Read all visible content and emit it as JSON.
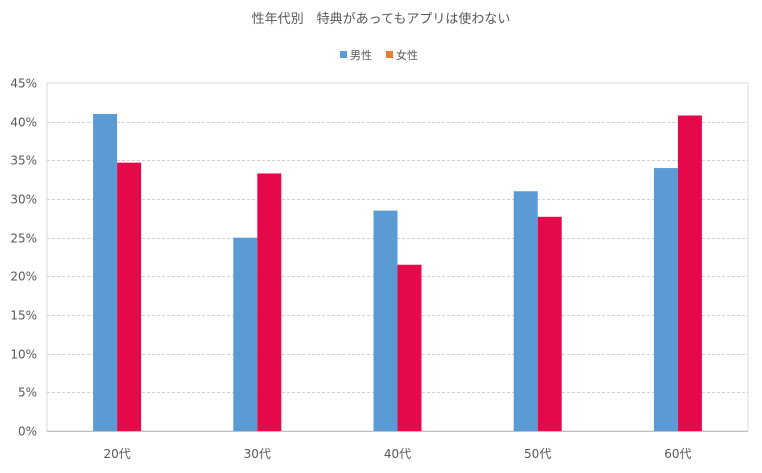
{
  "chart_data": {
    "type": "bar",
    "title": "性年代別　特典があってもアプリは使わない",
    "xlabel": "",
    "ylabel": "",
    "categories": [
      "20代",
      "30代",
      "40代",
      "50代",
      "60代"
    ],
    "series": [
      {
        "name": "男性",
        "color": "#5B9BD5",
        "values": [
          41.0,
          25.0,
          28.5,
          31.0,
          34.0
        ]
      },
      {
        "name": "女性",
        "color": "#E6094A",
        "values": [
          34.7,
          33.3,
          21.5,
          27.7,
          40.8
        ]
      }
    ],
    "legend_swatch_colors": [
      "#5B9BD5",
      "#ED7D31"
    ],
    "ylim": [
      0,
      45
    ],
    "yticks": [
      0,
      5,
      10,
      15,
      20,
      25,
      30,
      35,
      40,
      45
    ],
    "ytick_labels": [
      "0%",
      "5%",
      "10%",
      "15%",
      "20%",
      "25%",
      "30%",
      "35%",
      "40%",
      "45%"
    ],
    "legend_position": "top-center",
    "grid": true
  }
}
